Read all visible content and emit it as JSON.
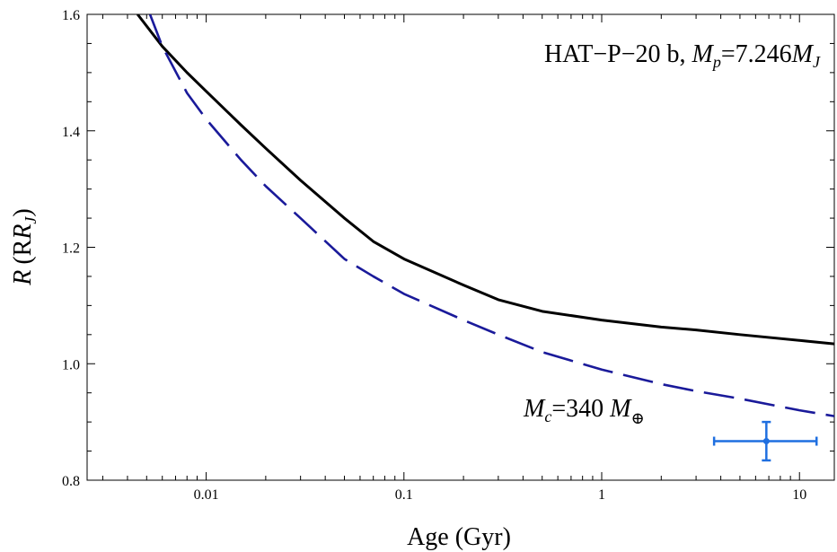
{
  "chart_data": {
    "type": "line",
    "title": "",
    "xlabel": "Age (Gyr)",
    "ylabel_main": "R",
    "ylabel_paren": "(R",
    "ylabel_sub": "J",
    "ylabel_close": ")",
    "xscale": "log",
    "xlim": [
      0.0025,
      15
    ],
    "ylim": [
      0.8,
      1.6
    ],
    "grid": false,
    "x_ticks": [
      {
        "value": 0.01,
        "label": "0.01"
      },
      {
        "value": 0.1,
        "label": "0.1"
      },
      {
        "value": 1,
        "label": "1"
      },
      {
        "value": 10,
        "label": "10"
      }
    ],
    "y_ticks": [
      {
        "value": 0.8,
        "label": "0.8"
      },
      {
        "value": 1.0,
        "label": "1.0"
      },
      {
        "value": 1.2,
        "label": "1.2"
      },
      {
        "value": 1.4,
        "label": "1.4"
      },
      {
        "value": 1.6,
        "label": "1.6"
      }
    ],
    "series": [
      {
        "style": "solid",
        "color": "#000000",
        "x": [
          0.0045,
          0.006,
          0.008,
          0.01,
          0.015,
          0.02,
          0.03,
          0.05,
          0.07,
          0.1,
          0.2,
          0.3,
          0.5,
          1,
          2,
          3,
          5,
          10,
          15
        ],
        "y": [
          1.6,
          1.545,
          1.5,
          1.468,
          1.41,
          1.37,
          1.315,
          1.25,
          1.21,
          1.18,
          1.135,
          1.11,
          1.09,
          1.075,
          1.063,
          1.058,
          1.05,
          1.04,
          1.034
        ]
      },
      {
        "style": "dashed",
        "color": "#1a1a9a",
        "x": [
          0.0052,
          0.006,
          0.008,
          0.01,
          0.015,
          0.02,
          0.03,
          0.05,
          0.07,
          0.1,
          0.2,
          0.3,
          0.5,
          1,
          2,
          3,
          5,
          10,
          15
        ],
        "y": [
          1.6,
          1.545,
          1.465,
          1.42,
          1.35,
          1.305,
          1.25,
          1.18,
          1.15,
          1.12,
          1.075,
          1.05,
          1.02,
          0.99,
          0.965,
          0.953,
          0.94,
          0.92,
          0.91
        ]
      }
    ],
    "observation": {
      "color": "#1f6fe0",
      "x": 6.8,
      "y": 0.867,
      "x_err": [
        3.7,
        12.2
      ],
      "y_err": [
        0.834,
        0.9
      ]
    },
    "annotations": {
      "planet": {
        "name": "HAT−P−20 b, ",
        "mass_symbol": "M",
        "mass_sub": "p",
        "mass_value": "=7.246",
        "mass_unit": "M",
        "mass_unit_sub": "J"
      },
      "core": {
        "symbol": "M",
        "sub": "c",
        "value": "=340 ",
        "unit": "M",
        "unit_sub": "⊕"
      }
    }
  }
}
